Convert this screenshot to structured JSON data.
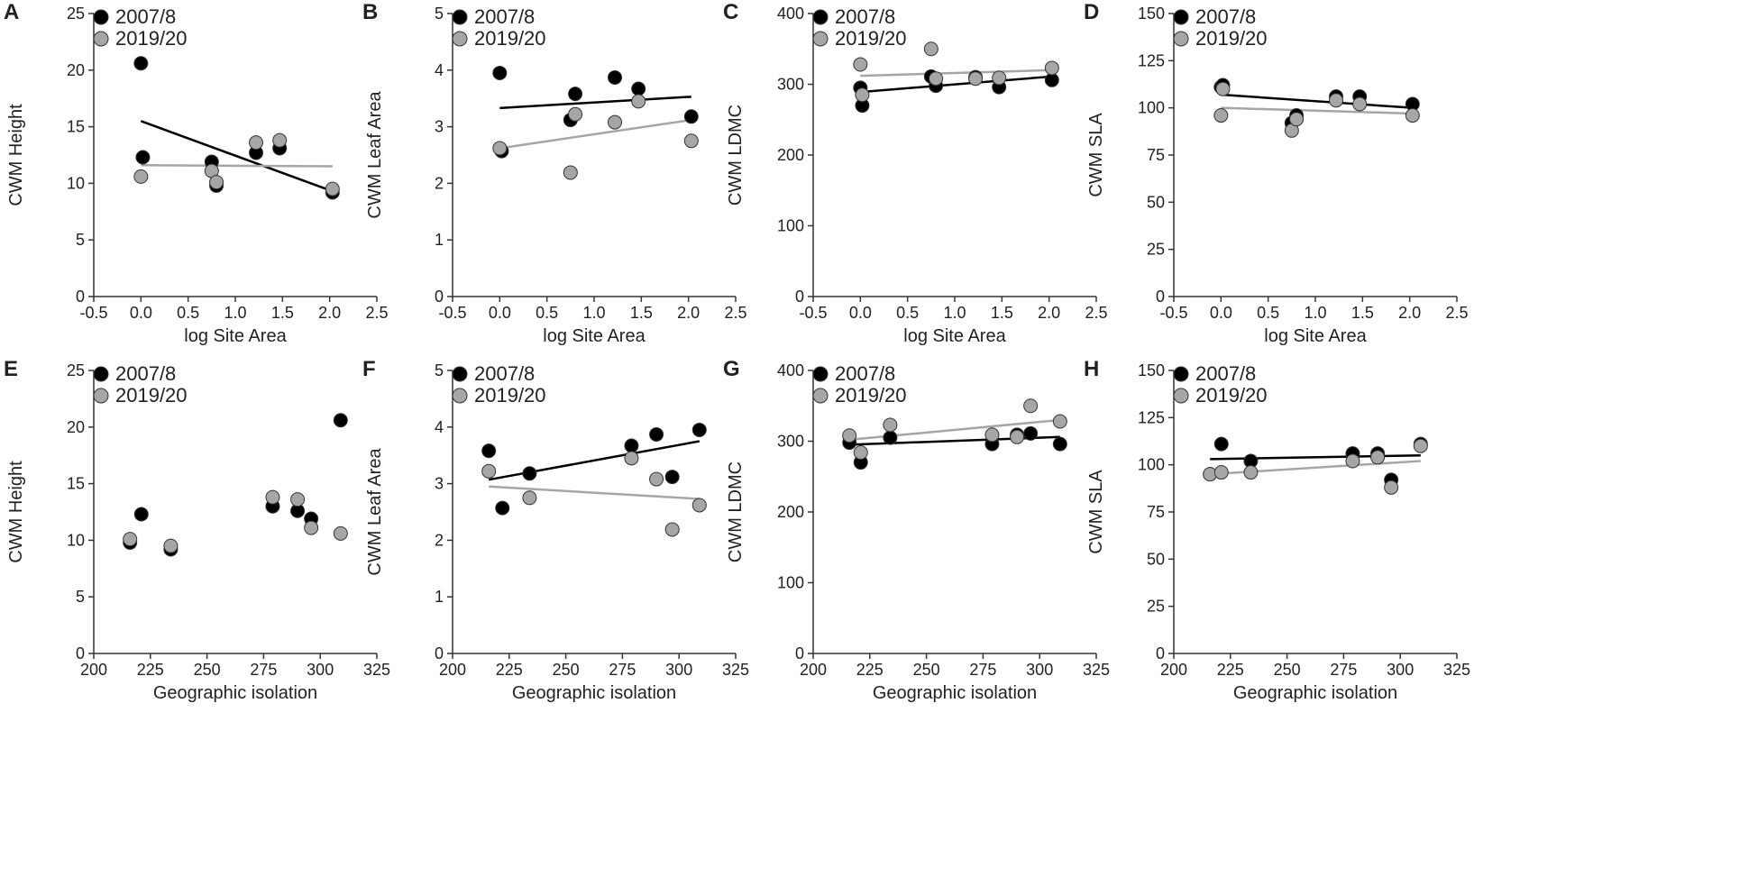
{
  "figure": {
    "colors": {
      "series_2007": "#000000",
      "series_2019": "#a6a6a6",
      "marker_stroke": "#333333",
      "axis": "#333333"
    }
  },
  "chart_data": [
    {
      "id": "A",
      "letter": "A",
      "type": "scatter",
      "xlabel": "log Site Area",
      "ylabel": "CWM Height",
      "xlim": [
        -0.5,
        2.5
      ],
      "ylim": [
        0,
        25
      ],
      "xticks": [
        -0.5,
        0.0,
        0.5,
        1.0,
        1.5,
        2.0,
        2.5
      ],
      "xtick_labels": [
        "-0.5",
        "0.0",
        "0.5",
        "1.0",
        "1.5",
        "2.0",
        "2.5"
      ],
      "yticks": [
        0,
        5,
        10,
        15,
        20,
        25
      ],
      "ytick_labels": [
        "0",
        "5",
        "10",
        "15",
        "20",
        "25"
      ],
      "legend": [
        "2007/8",
        "2019/20"
      ],
      "series": [
        {
          "name": "2007/8",
          "color": "#000000",
          "points": [
            [
              0.0,
              20.6
            ],
            [
              0.02,
              12.3
            ],
            [
              0.75,
              11.9
            ],
            [
              0.8,
              9.8
            ],
            [
              1.22,
              12.7
            ],
            [
              1.47,
              13.1
            ],
            [
              2.03,
              9.2
            ]
          ],
          "trend": [
            [
              0.0,
              15.5
            ],
            [
              2.03,
              9.3
            ]
          ]
        },
        {
          "name": "2019/20",
          "color": "#a6a6a6",
          "points": [
            [
              0.0,
              10.6
            ],
            [
              0.75,
              11.1
            ],
            [
              0.8,
              10.1
            ],
            [
              1.22,
              13.6
            ],
            [
              1.47,
              13.8
            ],
            [
              2.03,
              9.5
            ]
          ],
          "trend": [
            [
              0.0,
              11.6
            ],
            [
              2.03,
              11.5
            ]
          ]
        }
      ]
    },
    {
      "id": "B",
      "letter": "B",
      "type": "scatter",
      "xlabel": "log Site Area",
      "ylabel": "CWM Leaf  Area",
      "xlim": [
        -0.5,
        2.5
      ],
      "ylim": [
        0,
        5
      ],
      "xticks": [
        -0.5,
        0.0,
        0.5,
        1.0,
        1.5,
        2.0,
        2.5
      ],
      "xtick_labels": [
        "-0.5",
        "0.0",
        "0.5",
        "1.0",
        "1.5",
        "2.0",
        "2.5"
      ],
      "yticks": [
        0,
        1,
        2,
        3,
        4,
        5
      ],
      "ytick_labels": [
        "0",
        "1",
        "2",
        "3",
        "4",
        "5"
      ],
      "legend": [
        "2007/8",
        "2019/20"
      ],
      "series": [
        {
          "name": "2007/8",
          "color": "#000000",
          "points": [
            [
              0.0,
              3.95
            ],
            [
              0.02,
              2.57
            ],
            [
              0.75,
              3.12
            ],
            [
              0.8,
              3.58
            ],
            [
              1.22,
              3.87
            ],
            [
              1.47,
              3.67
            ],
            [
              2.03,
              3.18
            ]
          ],
          "trend": [
            [
              0.0,
              3.33
            ],
            [
              2.03,
              3.53
            ]
          ]
        },
        {
          "name": "2019/20",
          "color": "#a6a6a6",
          "points": [
            [
              0.0,
              2.62
            ],
            [
              0.75,
              2.19
            ],
            [
              0.8,
              3.22
            ],
            [
              1.22,
              3.08
            ],
            [
              1.47,
              3.45
            ],
            [
              2.03,
              2.75
            ]
          ],
          "trend": [
            [
              0.0,
              2.62
            ],
            [
              2.03,
              3.12
            ]
          ]
        }
      ]
    },
    {
      "id": "C",
      "letter": "C",
      "type": "scatter",
      "xlabel": "log Site Area",
      "ylabel": "CWM LDMC",
      "xlim": [
        -0.5,
        2.5
      ],
      "ylim": [
        0,
        400
      ],
      "xticks": [
        -0.5,
        0.0,
        0.5,
        1.0,
        1.5,
        2.0,
        2.5
      ],
      "xtick_labels": [
        "-0.5",
        "0.0",
        "0.5",
        "1.0",
        "1.5",
        "2.0",
        "2.5"
      ],
      "yticks": [
        0,
        100,
        200,
        300,
        400
      ],
      "ytick_labels": [
        "0",
        "100",
        "200",
        "300",
        "400"
      ],
      "legend": [
        "2007/8",
        "2019/20"
      ],
      "series": [
        {
          "name": "2007/8",
          "color": "#000000",
          "points": [
            [
              0.0,
              295
            ],
            [
              0.02,
              270
            ],
            [
              0.75,
              311
            ],
            [
              0.8,
              298
            ],
            [
              1.22,
              310
            ],
            [
              1.47,
              296
            ],
            [
              2.03,
              306
            ]
          ],
          "trend": [
            [
              0.0,
              289
            ],
            [
              2.03,
              311
            ]
          ]
        },
        {
          "name": "2019/20",
          "color": "#a6a6a6",
          "points": [
            [
              0.0,
              328
            ],
            [
              0.02,
              285
            ],
            [
              0.75,
              350
            ],
            [
              0.8,
              308
            ],
            [
              1.22,
              308
            ],
            [
              1.47,
              309
            ],
            [
              2.03,
              323
            ]
          ],
          "trend": [
            [
              0.0,
              312
            ],
            [
              2.03,
              320
            ]
          ]
        }
      ]
    },
    {
      "id": "D",
      "letter": "D",
      "type": "scatter",
      "xlabel": "log Site Area",
      "ylabel": "CWM SLA",
      "xlim": [
        -0.5,
        2.5
      ],
      "ylim": [
        0,
        150
      ],
      "xticks": [
        -0.5,
        0.0,
        0.5,
        1.0,
        1.5,
        2.0,
        2.5
      ],
      "xtick_labels": [
        "-0.5",
        "0.0",
        "0.5",
        "1.0",
        "1.5",
        "2.0",
        "2.5"
      ],
      "yticks": [
        0,
        25,
        50,
        75,
        100,
        125,
        150
      ],
      "ytick_labels": [
        "0",
        "25",
        "50",
        "75",
        "100",
        "125",
        "150"
      ],
      "legend": [
        "2007/8",
        "2019/20"
      ],
      "series": [
        {
          "name": "2007/8",
          "color": "#000000",
          "points": [
            [
              0.0,
              111
            ],
            [
              0.02,
              112
            ],
            [
              0.75,
              92
            ],
            [
              0.8,
              96
            ],
            [
              1.22,
              106
            ],
            [
              1.47,
              106
            ],
            [
              2.03,
              102
            ]
          ],
          "trend": [
            [
              0.0,
              107
            ],
            [
              2.03,
              100
            ]
          ]
        },
        {
          "name": "2019/20",
          "color": "#a6a6a6",
          "points": [
            [
              0.0,
              96
            ],
            [
              0.02,
              110
            ],
            [
              0.75,
              88
            ],
            [
              0.8,
              94
            ],
            [
              1.22,
              104
            ],
            [
              1.47,
              102
            ],
            [
              2.03,
              96
            ]
          ],
          "trend": [
            [
              0.0,
              100
            ],
            [
              2.03,
              97
            ]
          ]
        }
      ]
    },
    {
      "id": "E",
      "letter": "E",
      "type": "scatter",
      "xlabel": "Geographic isolation",
      "ylabel": "CWM Height",
      "xlim": [
        200,
        325
      ],
      "ylim": [
        0,
        25
      ],
      "xticks": [
        200,
        225,
        250,
        275,
        300,
        325
      ],
      "xtick_labels": [
        "200",
        "225",
        "250",
        "275",
        "300",
        "325"
      ],
      "yticks": [
        0,
        5,
        10,
        15,
        20,
        25
      ],
      "ytick_labels": [
        "0",
        "5",
        "10",
        "15",
        "20",
        "25"
      ],
      "legend": [
        "2007/8",
        "2019/20"
      ],
      "series": [
        {
          "name": "2007/8",
          "color": "#000000",
          "points": [
            [
              216,
              9.8
            ],
            [
              221,
              12.3
            ],
            [
              234,
              9.2
            ],
            [
              279,
              13.0
            ],
            [
              290,
              12.6
            ],
            [
              296,
              11.9
            ],
            [
              309,
              20.6
            ]
          ]
        },
        {
          "name": "2019/20",
          "color": "#a6a6a6",
          "points": [
            [
              216,
              10.1
            ],
            [
              234,
              9.5
            ],
            [
              279,
              13.8
            ],
            [
              290,
              13.6
            ],
            [
              296,
              11.1
            ],
            [
              309,
              10.6
            ]
          ]
        }
      ]
    },
    {
      "id": "F",
      "letter": "F",
      "type": "scatter",
      "xlabel": "Geographic isolation",
      "ylabel": "CWM Leaf  Area",
      "xlim": [
        200,
        325
      ],
      "ylim": [
        0,
        5
      ],
      "xticks": [
        200,
        225,
        250,
        275,
        300,
        325
      ],
      "xtick_labels": [
        "200",
        "225",
        "250",
        "275",
        "300",
        "325"
      ],
      "yticks": [
        0,
        1,
        2,
        3,
        4,
        5
      ],
      "ytick_labels": [
        "0",
        "1",
        "2",
        "3",
        "4",
        "5"
      ],
      "legend": [
        "2007/8",
        "2019/20"
      ],
      "series": [
        {
          "name": "2007/8",
          "color": "#000000",
          "points": [
            [
              216,
              3.58
            ],
            [
              222,
              2.57
            ],
            [
              234,
              3.18
            ],
            [
              279,
              3.67
            ],
            [
              290,
              3.87
            ],
            [
              297,
              3.12
            ],
            [
              309,
              3.95
            ]
          ],
          "trend": [
            [
              216,
              3.07
            ],
            [
              309,
              3.75
            ]
          ]
        },
        {
          "name": "2019/20",
          "color": "#a6a6a6",
          "points": [
            [
              216,
              3.22
            ],
            [
              234,
              2.75
            ],
            [
              279,
              3.45
            ],
            [
              290,
              3.08
            ],
            [
              297,
              2.19
            ],
            [
              309,
              2.62
            ]
          ],
          "trend": [
            [
              216,
              2.95
            ],
            [
              309,
              2.73
            ]
          ]
        }
      ]
    },
    {
      "id": "G",
      "letter": "G",
      "type": "scatter",
      "xlabel": "Geographic isolation",
      "ylabel": "CWM LDMC",
      "xlim": [
        200,
        325
      ],
      "ylim": [
        0,
        400
      ],
      "xticks": [
        200,
        225,
        250,
        275,
        300,
        325
      ],
      "xtick_labels": [
        "200",
        "225",
        "250",
        "275",
        "300",
        "325"
      ],
      "yticks": [
        0,
        100,
        200,
        300,
        400
      ],
      "ytick_labels": [
        "0",
        "100",
        "200",
        "300",
        "400"
      ],
      "legend": [
        "2007/8",
        "2019/20"
      ],
      "series": [
        {
          "name": "2007/8",
          "color": "#000000",
          "points": [
            [
              216,
              298
            ],
            [
              221,
              270
            ],
            [
              234,
              305
            ],
            [
              279,
              296
            ],
            [
              290,
              309
            ],
            [
              296,
              311
            ],
            [
              309,
              296
            ]
          ],
          "trend": [
            [
              216,
              295
            ],
            [
              309,
              306
            ]
          ]
        },
        {
          "name": "2019/20",
          "color": "#a6a6a6",
          "points": [
            [
              216,
              308
            ],
            [
              221,
              284
            ],
            [
              234,
              323
            ],
            [
              279,
              309
            ],
            [
              290,
              306
            ],
            [
              296,
              350
            ],
            [
              309,
              328
            ]
          ],
          "trend": [
            [
              216,
              302
            ],
            [
              309,
              330
            ]
          ]
        }
      ]
    },
    {
      "id": "H",
      "letter": "H",
      "type": "scatter",
      "xlabel": "Geographic isolation",
      "ylabel": "CWM SLA",
      "xlim": [
        200,
        325
      ],
      "ylim": [
        0,
        150
      ],
      "xticks": [
        200,
        225,
        250,
        275,
        300,
        325
      ],
      "xtick_labels": [
        "200",
        "225",
        "250",
        "275",
        "300",
        "325"
      ],
      "yticks": [
        0,
        25,
        50,
        75,
        100,
        125,
        150
      ],
      "ytick_labels": [
        "0",
        "25",
        "50",
        "75",
        "100",
        "125",
        "150"
      ],
      "legend": [
        "2007/8",
        "2019/20"
      ],
      "series": [
        {
          "name": "2007/8",
          "color": "#000000",
          "points": [
            [
              216,
              95
            ],
            [
              221,
              111
            ],
            [
              234,
              102
            ],
            [
              279,
              106
            ],
            [
              290,
              106
            ],
            [
              296,
              92
            ],
            [
              309,
              111
            ]
          ],
          "trend": [
            [
              216,
              103
            ],
            [
              309,
              105
            ]
          ]
        },
        {
          "name": "2019/20",
          "color": "#a6a6a6",
          "points": [
            [
              216,
              95
            ],
            [
              221,
              96
            ],
            [
              234,
              96
            ],
            [
              279,
              102
            ],
            [
              290,
              104
            ],
            [
              296,
              88
            ],
            [
              309,
              110
            ]
          ],
          "trend": [
            [
              216,
              95
            ],
            [
              309,
              102
            ]
          ]
        }
      ]
    }
  ]
}
